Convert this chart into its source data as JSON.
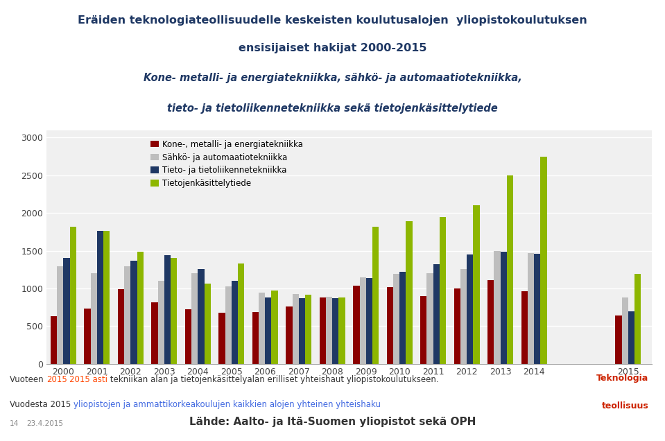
{
  "title_line1": "Eräiden teknologiateollisuudelle keskeisten koulutusalojen  yliopistokoulutuksen",
  "title_line2": "ensisijaiset hakijat 2000-2015",
  "title_line3": "Kone- metalli- ja energiatekniikka, sähkö- ja automaatiotekniikka,",
  "title_line4": "tieto- ja tietoliikennetekniikka sekä tietojenkäsittelytiede",
  "years": [
    2000,
    2001,
    2002,
    2003,
    2004,
    2005,
    2006,
    2007,
    2008,
    2009,
    2010,
    2011,
    2012,
    2013,
    2014,
    2015
  ],
  "series": {
    "Kone-, metalli- ja energiatekniikka": [
      630,
      730,
      990,
      820,
      720,
      680,
      690,
      760,
      880,
      1040,
      1020,
      900,
      1000,
      1110,
      960,
      640
    ],
    "Sähkö- ja automaatiotekniikka": [
      1290,
      1200,
      1290,
      1100,
      1200,
      1030,
      940,
      930,
      890,
      1150,
      1190,
      1200,
      1260,
      1500,
      1470,
      880
    ],
    "Tieto- ja tietoliikennetekniikka": [
      1400,
      1760,
      1370,
      1440,
      1260,
      1100,
      880,
      870,
      870,
      1140,
      1220,
      1320,
      1450,
      1490,
      1460,
      700
    ],
    "Tietojenkäsittelytiede": [
      1820,
      1760,
      1490,
      1400,
      1060,
      1330,
      970,
      920,
      880,
      1820,
      1890,
      1950,
      2100,
      2500,
      2750,
      1190
    ]
  },
  "colors": {
    "Kone-, metalli- ja energiatekniikka": "#8B0000",
    "Sähkö- ja automaatiotekniikka": "#BEBEBE",
    "Tieto- ja tietoliikennetekniikka": "#1F3864",
    "Tietojenkäsittelytiede": "#8DB600"
  },
  "ylim": [
    0,
    3100
  ],
  "yticks": [
    0,
    500,
    1000,
    1500,
    2000,
    2500,
    3000
  ],
  "background_color": "#FFFFFF",
  "plot_bg_color": "#F0F0F0",
  "grid_color": "#FFFFFF",
  "title_color": "#1F3864",
  "title_bg_color": "#E8E8EE",
  "footer_highlight1_color": "#FF4500",
  "footer_highlight2_color": "#4169E1",
  "logo_color": "#CC2200",
  "footer_page": "14",
  "footer_date": "23.4.2015",
  "logo_text1": "Teknologia",
  "logo_text2": "teollisuus",
  "footer_source": "Lähde: Aalto- ja Itä-Suomen yliopistot sekä OPH"
}
